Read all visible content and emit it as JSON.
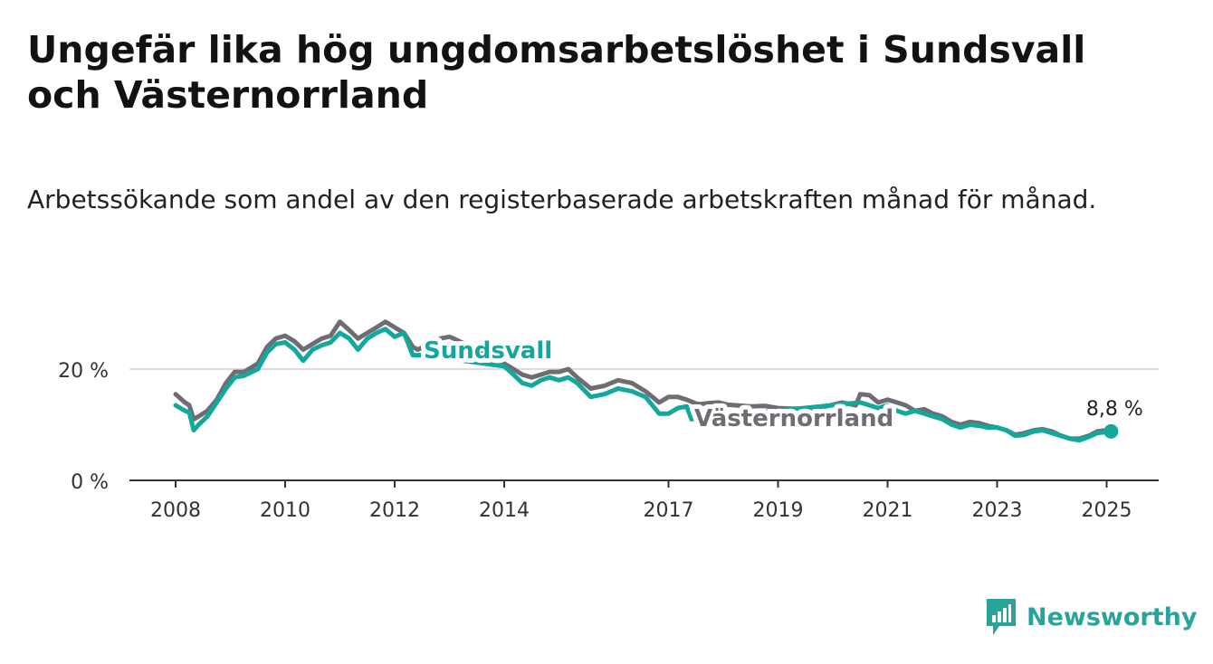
{
  "title": "Ungefär lika hög ungdomsarbetslöshet i Sundsvall och Västernorrland",
  "subtitle": "Arbetssökande som andel av den registerbaserade arbetskraften månad för månad.",
  "brand": "Newsworthy",
  "colors": {
    "sundsvall": "#13a89e",
    "vasternorrland": "#6f6d73",
    "grid": "#dddddd",
    "axis": "#333333"
  },
  "chart_data": {
    "type": "line",
    "x_ticks": [
      "2008",
      "2010",
      "2012",
      "2014",
      "2017",
      "2019",
      "2021",
      "2023",
      "2025"
    ],
    "y_ticks": [
      "0 %",
      "20 %"
    ],
    "ylim": [
      0,
      30
    ],
    "grid": true,
    "end_label": "8,8 %",
    "series": [
      {
        "name": "Sundsvall",
        "color": "#13a89e",
        "x": [
          2008.0,
          2008.17,
          2008.25,
          2008.33,
          2008.42,
          2008.58,
          2008.75,
          2008.92,
          2009.08,
          2009.25,
          2009.5,
          2009.67,
          2009.83,
          2010.0,
          2010.17,
          2010.33,
          2010.5,
          2010.67,
          2010.83,
          2011.0,
          2011.17,
          2011.33,
          2011.5,
          2011.67,
          2011.83,
          2012.0,
          2012.17,
          2012.33,
          2012.5,
          2014.0,
          2014.17,
          2014.33,
          2014.5,
          2014.67,
          2014.83,
          2015.0,
          2015.17,
          2015.33,
          2015.58,
          2015.83,
          2016.08,
          2016.33,
          2016.58,
          2016.83,
          2017.0,
          2017.17,
          2017.33,
          2017.42,
          2020.5,
          2020.67,
          2020.83,
          2021.0,
          2021.17,
          2021.33,
          2021.5,
          2021.67,
          2021.83,
          2022.0,
          2022.17,
          2022.33,
          2022.5,
          2022.67,
          2022.83,
          2023.0,
          2023.17,
          2023.33,
          2023.5,
          2023.67,
          2023.83,
          2024.0,
          2024.17,
          2024.33,
          2024.5,
          2024.67,
          2024.83,
          2025.0,
          2025.08
        ],
        "y": [
          13.5,
          12.5,
          12.2,
          9.0,
          10.0,
          11.5,
          14.0,
          16.5,
          18.5,
          18.8,
          20.0,
          23.0,
          24.5,
          24.8,
          23.5,
          21.5,
          23.5,
          24.3,
          24.8,
          26.5,
          25.5,
          23.5,
          25.5,
          26.5,
          27.2,
          25.8,
          26.5,
          22.5,
          22.5,
          20.5,
          19.0,
          17.5,
          17.0,
          18.0,
          18.5,
          18.0,
          18.5,
          17.5,
          15.0,
          15.5,
          16.5,
          16.0,
          15.0,
          12.0,
          12.0,
          13.0,
          13.3,
          11.0,
          14.0,
          13.5,
          13.0,
          13.5,
          12.5,
          12.0,
          12.5,
          12.0,
          11.5,
          11.0,
          10.0,
          9.5,
          10.0,
          9.8,
          9.5,
          9.5,
          9.0,
          8.0,
          8.2,
          8.8,
          9.0,
          8.5,
          8.0,
          7.5,
          7.2,
          7.8,
          8.5,
          8.7,
          8.8
        ]
      },
      {
        "name": "Västernorrland",
        "color": "#6f6d73",
        "x": [
          2008.0,
          2008.17,
          2008.25,
          2008.33,
          2008.42,
          2008.58,
          2008.75,
          2008.92,
          2009.08,
          2009.25,
          2009.5,
          2009.67,
          2009.83,
          2010.0,
          2010.17,
          2010.33,
          2010.5,
          2010.67,
          2010.83,
          2011.0,
          2011.17,
          2011.33,
          2011.5,
          2011.67,
          2011.83,
          2012.0,
          2012.17,
          2012.33,
          2012.42,
          2012.83,
          2013.0,
          2013.08,
          2014.0,
          2014.17,
          2014.33,
          2014.5,
          2014.67,
          2014.83,
          2015.0,
          2015.17,
          2015.33,
          2015.58,
          2015.83,
          2016.08,
          2016.33,
          2016.58,
          2016.83,
          2017.0,
          2017.17,
          2017.33,
          2017.5,
          2017.58,
          2017.75,
          2017.92,
          2018.08,
          2018.5,
          2018.75,
          2019.0,
          2019.25,
          2019.5,
          2019.75,
          2019.92,
          2020.17,
          2020.42,
          2020.5,
          2020.67,
          2020.83,
          2021.0,
          2021.17,
          2021.33,
          2021.5,
          2021.67,
          2021.83,
          2022.0,
          2022.17,
          2022.33,
          2022.5,
          2022.67,
          2022.83,
          2023.0,
          2023.17,
          2023.33,
          2023.5,
          2023.67,
          2023.83,
          2024.0,
          2024.17,
          2024.33,
          2024.5,
          2024.67,
          2024.83,
          2025.0,
          2025.08
        ],
        "y": [
          15.5,
          14.0,
          13.5,
          11.0,
          11.5,
          12.5,
          14.5,
          17.5,
          19.5,
          19.5,
          21.0,
          24.0,
          25.5,
          26.0,
          25.0,
          23.5,
          24.5,
          25.5,
          26.0,
          28.5,
          27.0,
          25.5,
          26.5,
          27.5,
          28.5,
          27.5,
          26.5,
          24.0,
          23.5,
          25.5,
          25.8,
          25.5,
          21.0,
          20.0,
          19.0,
          18.5,
          19.0,
          19.5,
          19.5,
          20.0,
          18.5,
          16.5,
          17.0,
          18.0,
          17.5,
          16.0,
          14.0,
          15.0,
          15.0,
          14.5,
          13.8,
          13.7,
          13.9,
          14.0,
          13.6,
          13.3,
          13.4,
          13.0,
          12.9,
          12.9,
          13.0,
          13.4,
          14.0,
          13.5,
          15.5,
          15.3,
          14.0,
          14.5,
          14.0,
          13.5,
          12.5,
          12.8,
          12.0,
          11.5,
          10.5,
          10.0,
          10.5,
          10.3,
          9.8,
          9.5,
          9.0,
          8.2,
          8.5,
          9.0,
          9.2,
          8.8,
          8.0,
          7.5,
          7.5,
          8.0,
          8.8,
          9.0,
          8.8
        ]
      }
    ],
    "annotations": [
      "Sundsvall",
      "Västernorrland"
    ]
  }
}
